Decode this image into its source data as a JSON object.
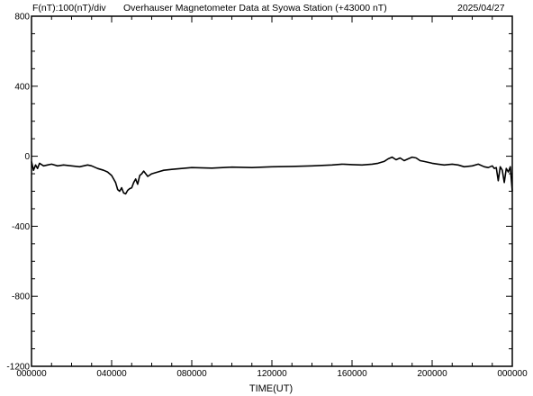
{
  "chart_data": {
    "type": "line",
    "header": {
      "left": "F(nT):100(nT)/div",
      "title": "Overhauser Magnetometer Data at Syowa Station (+43000 nT)",
      "date": "2025/04/27"
    },
    "xlabel": "TIME(UT)",
    "ylabel": "",
    "x_ticks": [
      "000000",
      "040000",
      "080000",
      "120000",
      "160000",
      "200000",
      "000000"
    ],
    "y_ticks": [
      "800",
      "400",
      "0",
      "-400",
      "-800",
      "-1200"
    ],
    "xlim": [
      0,
      24
    ],
    "ylim": [
      -1200,
      800
    ],
    "series": [
      {
        "color": "#000000",
        "x": [
          0,
          0.1,
          0.2,
          0.3,
          0.4,
          0.6,
          0.8,
          1.0,
          1.3,
          1.6,
          2.0,
          2.4,
          2.8,
          3.0,
          3.3,
          3.6,
          3.8,
          4.0,
          4.1,
          4.2,
          4.3,
          4.4,
          4.5,
          4.6,
          4.7,
          4.8,
          4.9,
          5.0,
          5.1,
          5.2,
          5.3,
          5.4,
          5.5,
          5.6,
          5.8,
          6.0,
          6.3,
          6.6,
          7.0,
          7.5,
          8.0,
          9.0,
          10.0,
          11.0,
          12.0,
          13.0,
          14.0,
          15.0,
          15.5,
          16.0,
          16.5,
          17.0,
          17.3,
          17.6,
          17.8,
          18.0,
          18.2,
          18.4,
          18.6,
          18.8,
          19.0,
          19.2,
          19.4,
          19.6,
          19.8,
          20.0,
          20.3,
          20.6,
          21.0,
          21.3,
          21.6,
          22.0,
          22.3,
          22.6,
          22.8,
          23.0,
          23.1,
          23.2,
          23.3,
          23.4,
          23.5,
          23.6,
          23.7,
          23.8,
          23.9,
          24.0
        ],
        "y": [
          -30,
          -80,
          -50,
          -70,
          -40,
          -55,
          -50,
          -45,
          -55,
          -50,
          -55,
          -60,
          -50,
          -55,
          -70,
          -80,
          -90,
          -110,
          -130,
          -150,
          -190,
          -200,
          -180,
          -210,
          -215,
          -195,
          -185,
          -180,
          -150,
          -130,
          -160,
          -110,
          -100,
          -85,
          -115,
          -100,
          -90,
          -80,
          -75,
          -70,
          -65,
          -68,
          -62,
          -65,
          -60,
          -58,
          -55,
          -50,
          -45,
          -48,
          -50,
          -45,
          -40,
          -30,
          -15,
          -5,
          -20,
          -10,
          -25,
          -15,
          -5,
          -10,
          -25,
          -30,
          -35,
          -40,
          -45,
          -50,
          -45,
          -50,
          -60,
          -55,
          -45,
          -60,
          -65,
          -55,
          -70,
          -65,
          -140,
          -60,
          -80,
          -150,
          -70,
          -90,
          -60,
          -200
        ]
      }
    ]
  }
}
